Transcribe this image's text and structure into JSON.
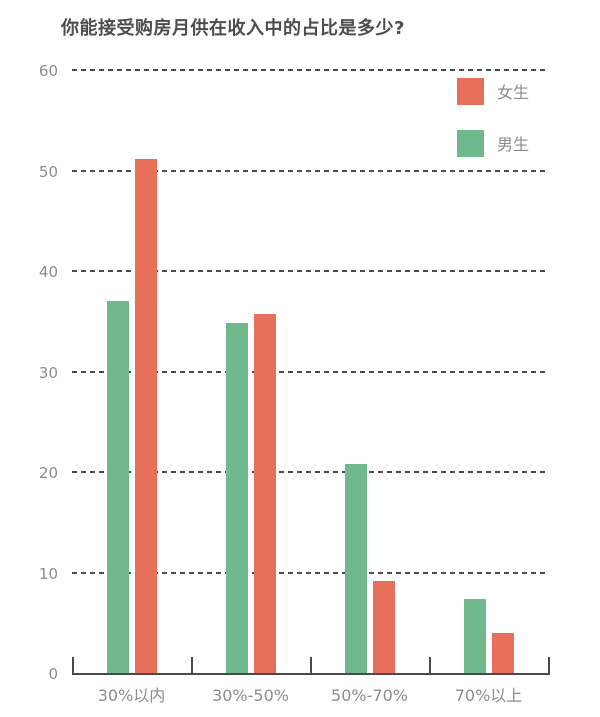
{
  "title": "你能接受购房月供在收入中的占比是多少?",
  "colors": {
    "female_bar": "#E7705A",
    "male_bar": "#6FB98D",
    "title_text": "#4D4D4D",
    "axis_text": "#8C8C8C",
    "axis_line": "#4A4A4A",
    "background": "#FFFFFF"
  },
  "legend": {
    "items": [
      {
        "key": "female",
        "label": "女生",
        "color": "#E7705A"
      },
      {
        "key": "male",
        "label": "男生",
        "color": "#6FB98D"
      }
    ]
  },
  "chart_data": {
    "type": "bar",
    "title": "你能接受购房月供在收入中的占比是多少?",
    "categories": [
      "30%以内",
      "30%-50%",
      "50%-70%",
      "70%以上"
    ],
    "series": [
      {
        "key": "male",
        "name": "男生",
        "color": "#6FB98D",
        "values": [
          37.0,
          34.8,
          20.8,
          7.4
        ]
      },
      {
        "key": "female",
        "name": "女生",
        "color": "#E7705A",
        "values": [
          51.1,
          35.7,
          9.2,
          4.0
        ]
      }
    ],
    "yticks": [
      0,
      10,
      20,
      30,
      40,
      50,
      60
    ],
    "ylim": [
      0,
      60
    ],
    "xlabel": "",
    "ylabel": "",
    "grid": "dashed-horizontal",
    "legend_position": "top-right",
    "legend_order": [
      "女生",
      "男生"
    ]
  }
}
